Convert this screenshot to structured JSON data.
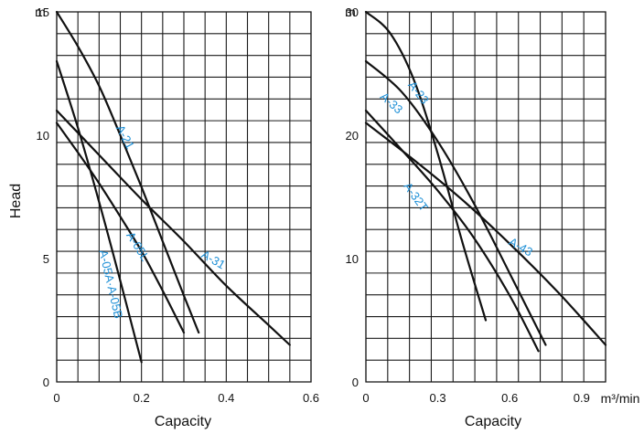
{
  "colors": {
    "grid": "#1a1a1a",
    "curve": "#111111",
    "label": "#1d8fd6",
    "background": "#ffffff"
  },
  "chart_data": [
    {
      "type": "line",
      "xlabel": "Capacity",
      "ylabel": "Head",
      "y_unit": "m",
      "xlim": [
        0,
        0.6
      ],
      "ylim": [
        0,
        15
      ],
      "x_ticks": [
        "0",
        "0.2",
        "0.4",
        "0.6"
      ],
      "x_tick_values": [
        0,
        0.2,
        0.4,
        0.6
      ],
      "y_ticks": [
        "0",
        "5",
        "10",
        "15"
      ],
      "y_tick_values": [
        0,
        5,
        10,
        15
      ],
      "grid": true,
      "series": [
        {
          "name": "A-21",
          "x": [
            0,
            0.05,
            0.1,
            0.15,
            0.2,
            0.25,
            0.3,
            0.335
          ],
          "y": [
            15,
            13.6,
            12,
            10,
            7.9,
            5.7,
            3.5,
            2
          ]
        },
        {
          "name": "A-05L",
          "x": [
            0,
            0.05,
            0.1,
            0.15,
            0.2,
            0.25,
            0.3
          ],
          "y": [
            10.5,
            9.3,
            8.05,
            6.7,
            5.3,
            3.7,
            2
          ]
        },
        {
          "name": "A-31",
          "x": [
            0,
            0.1,
            0.2,
            0.3,
            0.4,
            0.5,
            0.55
          ],
          "y": [
            11,
            9.2,
            7.4,
            5.7,
            3.9,
            2.3,
            1.5
          ]
        },
        {
          "name": "A-05A·A-05B",
          "x": [
            0,
            0.05,
            0.1,
            0.15,
            0.2
          ],
          "y": [
            13,
            10.3,
            7.3,
            4.1,
            0.8
          ]
        }
      ]
    },
    {
      "type": "line",
      "xlabel": "Capacity",
      "x_unit": "m³/min",
      "y_unit": "m",
      "xlim": [
        0,
        1.0
      ],
      "ylim": [
        0,
        30
      ],
      "x_ticks": [
        "0",
        "0.3",
        "0.6",
        "0.9"
      ],
      "x_tick_values": [
        0,
        0.3,
        0.6,
        0.9
      ],
      "y_ticks": [
        "0",
        "10",
        "20",
        "30"
      ],
      "y_tick_values": [
        0,
        10,
        20,
        30
      ],
      "grid": true,
      "series": [
        {
          "name": "A-23",
          "x": [
            0,
            0.1,
            0.2,
            0.3,
            0.4,
            0.5
          ],
          "y": [
            30,
            28.3,
            24.5,
            18.5,
            11.5,
            5
          ]
        },
        {
          "name": "A-33",
          "x": [
            0,
            0.15,
            0.3,
            0.45,
            0.6,
            0.75
          ],
          "y": [
            26,
            23.5,
            19.5,
            14.5,
            8.8,
            3
          ]
        },
        {
          "name": "A-32T",
          "x": [
            0,
            0.15,
            0.3,
            0.45,
            0.6,
            0.72
          ],
          "y": [
            22,
            18.8,
            15.5,
            11.7,
            7,
            2.5
          ]
        },
        {
          "name": "A-43",
          "x": [
            0,
            0.2,
            0.4,
            0.6,
            0.8,
            1.0
          ],
          "y": [
            21,
            18,
            14.8,
            11.2,
            7.3,
            3
          ]
        }
      ]
    }
  ]
}
